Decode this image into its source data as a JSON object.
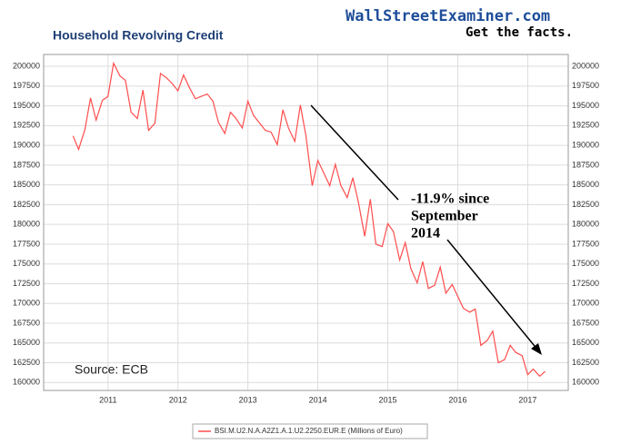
{
  "chart_data": {
    "type": "line",
    "title": "Household Revolving Credit",
    "watermark": "WallStreetExaminer.com",
    "tagline": "Get the facts.",
    "source": "Source: ECB",
    "annotation": [
      "-11.9% since",
      "September",
      "2014"
    ],
    "x": [
      2010.5,
      2010.58,
      2010.67,
      2010.75,
      2010.83,
      2010.92,
      2011.0,
      2011.08,
      2011.17,
      2011.25,
      2011.33,
      2011.42,
      2011.5,
      2011.58,
      2011.67,
      2011.75,
      2011.83,
      2011.92,
      2012.0,
      2012.08,
      2012.17,
      2012.25,
      2012.33,
      2012.42,
      2012.5,
      2012.58,
      2012.67,
      2012.75,
      2012.83,
      2012.92,
      2013.0,
      2013.08,
      2013.17,
      2013.25,
      2013.33,
      2013.42,
      2013.5,
      2013.58,
      2013.67,
      2013.75,
      2013.83,
      2013.92,
      2014.0,
      2014.08,
      2014.17,
      2014.25,
      2014.33,
      2014.42,
      2014.5,
      2014.58,
      2014.67,
      2014.75,
      2014.83,
      2014.92,
      2015.0,
      2015.08,
      2015.17,
      2015.25,
      2015.33,
      2015.42,
      2015.5,
      2015.58,
      2015.67,
      2015.75,
      2015.83,
      2015.92,
      2016.0,
      2016.08,
      2016.17,
      2016.25,
      2016.33,
      2016.42,
      2016.5,
      2016.58,
      2016.67,
      2016.75,
      2016.83,
      2016.92,
      2017.0,
      2017.08,
      2017.17,
      2017.25
    ],
    "series": [
      {
        "name": "BSI.M.U2.N.A.A2Z1.A.1.U2.2250.EUR.E (Millions of Euro)",
        "color": "#ff4d4d",
        "values": [
          191200,
          189500,
          192000,
          196000,
          193200,
          195700,
          196200,
          200400,
          198800,
          198200,
          194200,
          193400,
          197000,
          191900,
          192800,
          199100,
          198600,
          197800,
          196900,
          198900,
          197200,
          195900,
          196200,
          196500,
          195600,
          192900,
          191500,
          194200,
          193400,
          192200,
          195600,
          193800,
          192800,
          191900,
          191700,
          190100,
          194500,
          192200,
          190500,
          195100,
          191200,
          184900,
          188100,
          186600,
          184900,
          187600,
          184900,
          183400,
          185900,
          182800,
          178500,
          183200,
          177500,
          177200,
          180100,
          179100,
          175500,
          177700,
          174400,
          172600,
          175300,
          171900,
          172300,
          174600,
          171300,
          172400,
          170900,
          169400,
          168900,
          169300,
          164700,
          165300,
          166500,
          162500,
          162900,
          164700,
          163800,
          163400,
          161000,
          161700,
          160800,
          161400
        ]
      }
    ],
    "xlim": [
      2010.08,
      2017.58
    ],
    "xticks": [
      2011,
      2012,
      2013,
      2014,
      2015,
      2016,
      2017
    ],
    "ylim": [
      159000,
      201500
    ],
    "yticks": [
      160000,
      162500,
      165000,
      167500,
      170000,
      172500,
      175000,
      177500,
      180000,
      182500,
      185000,
      187500,
      190000,
      192500,
      195000,
      197500,
      200000
    ],
    "grid": true
  }
}
